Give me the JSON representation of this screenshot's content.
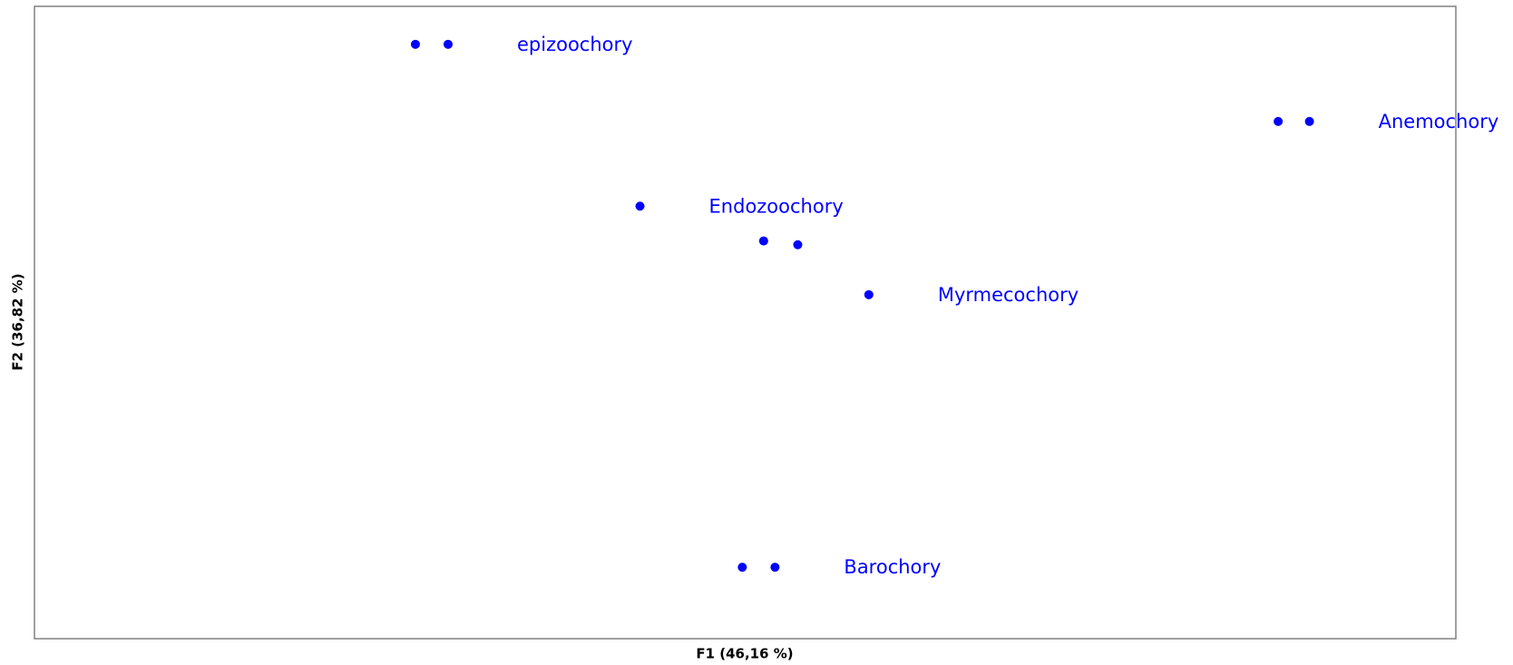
{
  "chart_data": {
    "type": "scatter",
    "xlabel": "F1 (46,16 %)",
    "ylabel": "F2 (36,82 %)",
    "xlim": [
      0,
      100
    ],
    "ylim": [
      0,
      100
    ],
    "color": "#0000ff",
    "x": [
      26.8,
      29.1,
      87.5,
      89.7,
      42.6,
      51.3,
      53.7,
      58.7,
      49.8,
      52.1
    ],
    "values": [
      94.0,
      94.0,
      81.8,
      81.8,
      68.4,
      62.9,
      62.3,
      54.4,
      11.3,
      11.3
    ],
    "labels": [
      null,
      "epizoochory",
      null,
      "Anemochory",
      "Endozoochory",
      null,
      null,
      "Myrmecochory",
      null,
      "Barochory"
    ]
  }
}
